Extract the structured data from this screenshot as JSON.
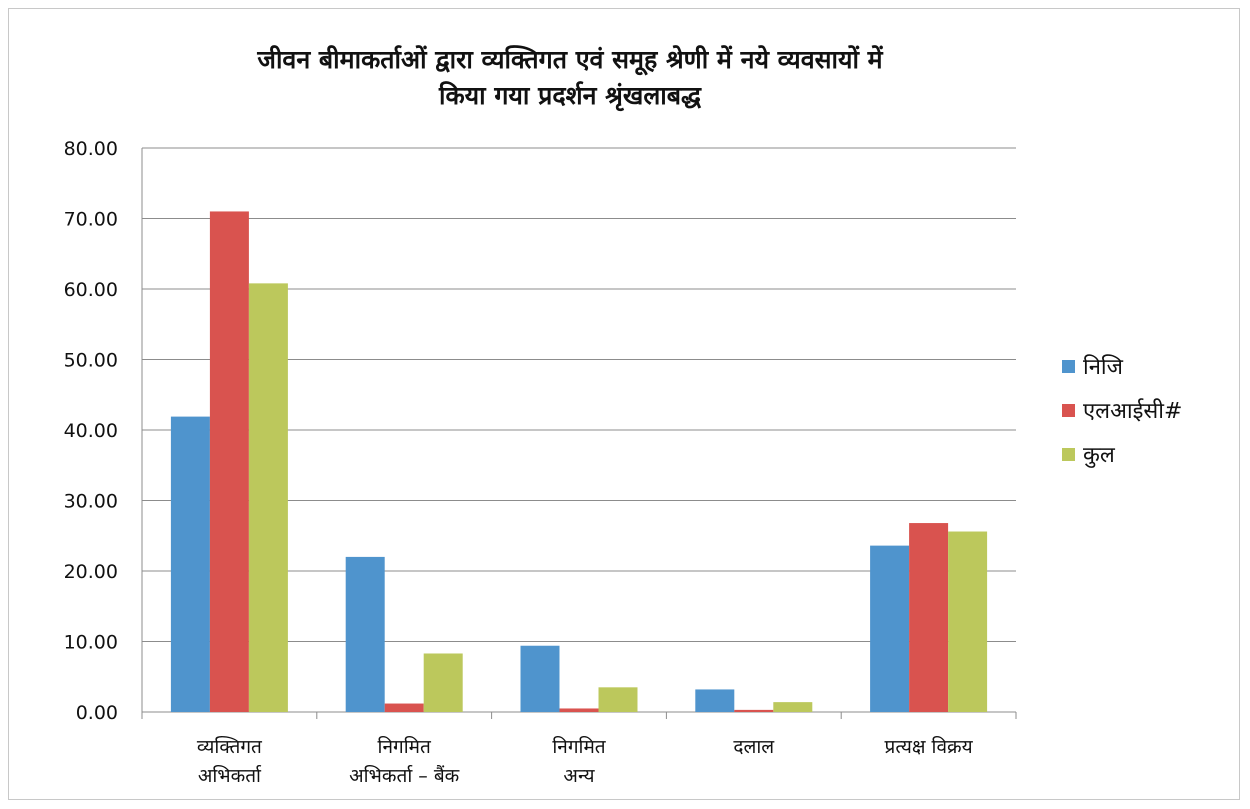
{
  "chart_data": {
    "type": "bar",
    "title_lines": [
      "जीवन बीमाकर्ताओं  द्वारा व्यक्तिगत एवं समूह श्रेणी में नये व्यवसायों में",
      "किया गया प्रदर्शन श्रृंखलाबद्ध"
    ],
    "categories": [
      [
        "व्यक्तिगत",
        "अभिकर्ता"
      ],
      [
        "निगमित",
        "अभिकर्ता – बैंक"
      ],
      [
        "निगमित",
        "अन्य"
      ],
      [
        "दलाल"
      ],
      [
        "प्रत्यक्ष विक्रय"
      ]
    ],
    "series": [
      {
        "name": "निजि",
        "color": "#4f94cd",
        "values": [
          41.9,
          22.0,
          9.4,
          3.2,
          23.6
        ]
      },
      {
        "name": "एलआईसी#",
        "color": "#d9534f",
        "values": [
          71.0,
          1.2,
          0.5,
          0.3,
          26.8
        ]
      },
      {
        "name": "कुल",
        "color": "#bcc85c",
        "values": [
          60.8,
          8.3,
          3.5,
          1.4,
          25.6
        ]
      }
    ],
    "yticks": [
      "0.00",
      "10.00",
      "20.00",
      "30.00",
      "40.00",
      "50.00",
      "60.00",
      "70.00",
      "80.00"
    ],
    "ylim": [
      0,
      80
    ],
    "grid": true,
    "legend_position": "right"
  }
}
